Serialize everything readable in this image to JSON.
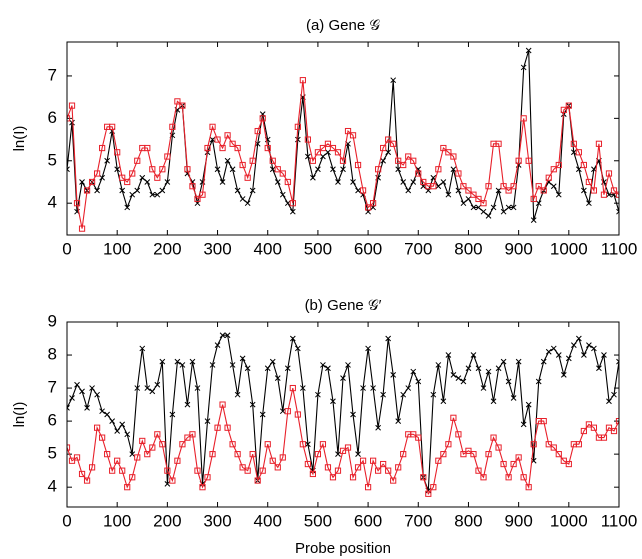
{
  "chart_data": [
    {
      "type": "line",
      "title": "(a) Gene 𝒢",
      "ylabel": "ln(I)",
      "xlim": [
        0,
        1100
      ],
      "xticks": [
        0,
        100,
        200,
        300,
        400,
        500,
        600,
        700,
        800,
        900,
        1000,
        1100
      ],
      "ylim": [
        3.25,
        7.8
      ],
      "yticks": [
        4,
        5,
        6,
        7
      ],
      "x": [
        0,
        10,
        20,
        30,
        40,
        50,
        60,
        70,
        80,
        90,
        100,
        110,
        120,
        130,
        140,
        150,
        160,
        170,
        180,
        190,
        200,
        210,
        220,
        230,
        240,
        250,
        260,
        270,
        280,
        290,
        300,
        310,
        320,
        330,
        340,
        350,
        360,
        370,
        380,
        390,
        400,
        410,
        420,
        430,
        440,
        450,
        460,
        470,
        480,
        490,
        500,
        510,
        520,
        530,
        540,
        550,
        560,
        570,
        580,
        590,
        600,
        610,
        620,
        630,
        640,
        650,
        660,
        670,
        680,
        690,
        700,
        710,
        720,
        730,
        740,
        750,
        760,
        770,
        780,
        790,
        800,
        810,
        820,
        830,
        840,
        850,
        860,
        870,
        880,
        890,
        900,
        910,
        920,
        930,
        940,
        950,
        960,
        970,
        980,
        990,
        1000,
        1010,
        1020,
        1030,
        1040,
        1050,
        1060,
        1070,
        1080,
        1090,
        1100
      ],
      "series": [
        {
          "color": "#000000",
          "marker": "x",
          "values": [
            4.8,
            5.9,
            3.8,
            4.5,
            4.3,
            4.5,
            4.3,
            4.6,
            5.0,
            5.7,
            4.8,
            4.3,
            3.9,
            4.2,
            4.3,
            4.6,
            4.5,
            4.2,
            4.2,
            4.3,
            4.5,
            5.6,
            6.2,
            6.3,
            4.7,
            4.5,
            4.0,
            4.5,
            5.2,
            5.5,
            4.8,
            4.5,
            5.0,
            4.8,
            4.3,
            4.1,
            4.0,
            4.3,
            5.4,
            6.1,
            5.5,
            4.8,
            4.5,
            4.2,
            4.0,
            3.8,
            5.5,
            6.5,
            5.1,
            4.6,
            4.8,
            5.1,
            5.2,
            4.8,
            4.5,
            4.8,
            5.4,
            4.5,
            4.3,
            4.2,
            3.8,
            3.9,
            4.6,
            5.0,
            5.2,
            6.9,
            4.8,
            4.5,
            4.3,
            4.5,
            4.8,
            4.4,
            4.3,
            4.6,
            4.4,
            4.5,
            4.2,
            4.8,
            4.3,
            4.0,
            4.1,
            3.9,
            3.9,
            3.8,
            3.7,
            3.9,
            4.3,
            3.8,
            3.9,
            3.9,
            4.9,
            7.2,
            7.6,
            3.6,
            4.0,
            4.3,
            4.5,
            4.4,
            4.2,
            6.1,
            6.3,
            5.2,
            4.8,
            4.3,
            4.0,
            4.8,
            5.0,
            4.5,
            4.2,
            4.2,
            3.8
          ]
        },
        {
          "color": "#e8202a",
          "marker": "square",
          "values": [
            6.0,
            6.3,
            4.0,
            3.4,
            4.3,
            4.5,
            4.7,
            5.3,
            5.8,
            5.8,
            5.2,
            4.6,
            4.5,
            4.7,
            5.0,
            5.3,
            5.3,
            4.8,
            4.6,
            4.8,
            5.1,
            5.8,
            6.4,
            6.3,
            4.8,
            4.4,
            4.1,
            4.2,
            5.3,
            5.8,
            5.5,
            5.3,
            5.6,
            5.4,
            5.3,
            4.9,
            4.6,
            5.0,
            5.7,
            6.0,
            5.3,
            5.0,
            4.8,
            4.7,
            4.5,
            4.0,
            5.8,
            6.9,
            5.5,
            5.0,
            5.2,
            5.3,
            5.4,
            5.3,
            5.2,
            5.0,
            5.7,
            5.6,
            4.9,
            4.3,
            3.9,
            4.0,
            4.8,
            5.3,
            5.5,
            5.4,
            5.0,
            4.9,
            5.1,
            5.0,
            4.7,
            4.5,
            4.4,
            4.4,
            4.8,
            5.3,
            5.2,
            5.1,
            4.7,
            4.4,
            4.3,
            4.2,
            4.1,
            4.0,
            4.4,
            5.4,
            5.4,
            4.4,
            4.3,
            4.4,
            5.0,
            6.0,
            5.0,
            4.1,
            4.4,
            4.3,
            4.6,
            4.8,
            4.9,
            6.2,
            6.3,
            5.4,
            5.2,
            4.9,
            4.5,
            4.3,
            5.4,
            4.2,
            4.7,
            4.3,
            4.2
          ]
        }
      ]
    },
    {
      "type": "line",
      "title": "(b) Gene 𝒢′",
      "ylabel": "ln(I)",
      "xlabel": "Probe position",
      "xlim": [
        0,
        1100
      ],
      "xticks": [
        0,
        100,
        200,
        300,
        400,
        500,
        600,
        700,
        800,
        900,
        1000,
        1100
      ],
      "ylim": [
        3.4,
        9
      ],
      "yticks": [
        4,
        5,
        6,
        7,
        8,
        9
      ],
      "x": [
        0,
        10,
        20,
        30,
        40,
        50,
        60,
        70,
        80,
        90,
        100,
        110,
        120,
        130,
        140,
        150,
        160,
        170,
        180,
        190,
        200,
        210,
        220,
        230,
        240,
        250,
        260,
        270,
        280,
        290,
        300,
        310,
        320,
        330,
        340,
        350,
        360,
        370,
        380,
        390,
        400,
        410,
        420,
        430,
        440,
        450,
        460,
        470,
        480,
        490,
        500,
        510,
        520,
        530,
        540,
        550,
        560,
        570,
        580,
        590,
        600,
        610,
        620,
        630,
        640,
        650,
        660,
        670,
        680,
        690,
        700,
        710,
        720,
        730,
        740,
        750,
        760,
        770,
        780,
        790,
        800,
        810,
        820,
        830,
        840,
        850,
        860,
        870,
        880,
        890,
        900,
        910,
        920,
        930,
        940,
        950,
        960,
        970,
        980,
        990,
        1000,
        1010,
        1020,
        1030,
        1040,
        1050,
        1060,
        1070,
        1080,
        1090,
        1100
      ],
      "series": [
        {
          "color": "#000000",
          "marker": "x",
          "values": [
            6.4,
            6.7,
            7.1,
            6.9,
            6.4,
            7.0,
            6.8,
            6.3,
            6.2,
            6.0,
            5.7,
            5.9,
            5.6,
            5.0,
            7.0,
            8.2,
            7.0,
            6.9,
            7.1,
            7.8,
            4.1,
            6.2,
            7.8,
            7.7,
            6.5,
            7.8,
            7.0,
            4.1,
            6.0,
            7.7,
            8.3,
            8.6,
            8.6,
            7.7,
            6.8,
            7.9,
            7.6,
            6.5,
            4.2,
            6.2,
            7.6,
            7.8,
            7.3,
            6.3,
            7.6,
            8.5,
            8.2,
            7.0,
            5.3,
            4.5,
            6.8,
            7.7,
            7.6,
            6.6,
            5.0,
            7.3,
            7.7,
            6.2,
            5.0,
            7.0,
            8.2,
            7.0,
            5.8,
            6.8,
            8.5,
            7.4,
            6.0,
            6.8,
            7.0,
            7.5,
            7.2,
            4.3,
            3.9,
            6.8,
            7.7,
            6.6,
            8.0,
            7.4,
            7.3,
            7.2,
            7.6,
            8.0,
            7.6,
            7.0,
            7.5,
            6.6,
            7.6,
            7.8,
            7.2,
            6.7,
            7.8,
            5.9,
            6.5,
            4.8,
            7.2,
            7.8,
            8.1,
            8.2,
            8.0,
            7.4,
            7.9,
            8.3,
            8.5,
            8.0,
            8.3,
            8.2,
            7.6,
            8.0,
            6.6,
            6.8,
            7.8
          ]
        },
        {
          "color": "#e8202a",
          "marker": "square",
          "values": [
            5.2,
            4.8,
            4.9,
            4.4,
            4.2,
            4.6,
            5.8,
            5.5,
            5.0,
            4.5,
            4.8,
            4.5,
            4.0,
            4.3,
            4.9,
            5.4,
            5.0,
            5.2,
            5.6,
            5.3,
            4.5,
            4.2,
            4.8,
            5.3,
            5.5,
            5.6,
            4.5,
            4.0,
            4.3,
            5.0,
            5.8,
            6.5,
            5.8,
            5.3,
            5.0,
            4.6,
            4.5,
            5.0,
            4.2,
            4.5,
            5.3,
            4.8,
            4.6,
            4.9,
            6.3,
            7.0,
            6.2,
            5.3,
            4.7,
            4.4,
            5.0,
            5.3,
            4.6,
            4.3,
            4.5,
            5.1,
            5.2,
            4.3,
            4.6,
            4.8,
            4.0,
            4.8,
            4.5,
            4.7,
            4.5,
            4.2,
            4.6,
            5.0,
            5.6,
            5.6,
            5.5,
            4.3,
            3.8,
            4.0,
            4.8,
            5.0,
            5.3,
            6.1,
            5.6,
            5.0,
            5.1,
            5.0,
            4.5,
            4.3,
            5.0,
            5.5,
            5.2,
            4.7,
            4.3,
            4.7,
            4.9,
            4.3,
            4.0,
            5.3,
            6.0,
            6.0,
            5.3,
            5.2,
            5.0,
            4.8,
            4.7,
            5.3,
            5.3,
            5.7,
            5.9,
            5.8,
            5.5,
            5.5,
            5.8,
            5.7,
            6.0
          ]
        }
      ]
    }
  ]
}
